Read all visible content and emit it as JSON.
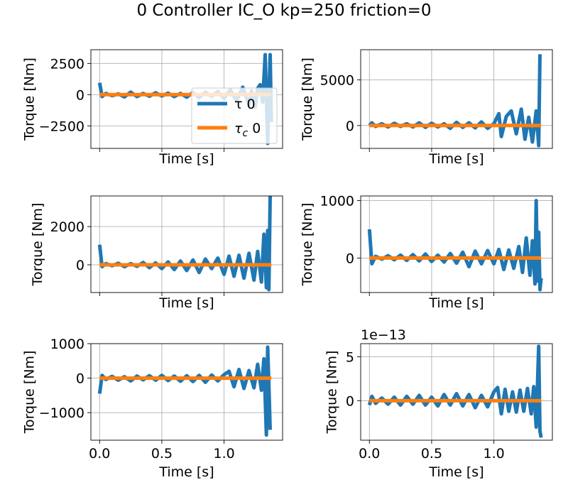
{
  "figure": {
    "title": "0 Controller IC_O kp=250 friction=0"
  },
  "colors": {
    "tau": "#1f77b4",
    "tau_c": "#ff7f0e",
    "grid": "#b0b0b0"
  },
  "legend": {
    "entries": [
      {
        "label": "τ 0",
        "color": "#1f77b4"
      },
      {
        "label": "τc 0",
        "color": "#ff7f0e"
      }
    ],
    "location": "lower-right of top-left subplot"
  },
  "chart_data": [
    {
      "type": "line",
      "xlabel": "Time [s]",
      "ylabel": "Torque [Nm]",
      "xlim": [
        -0.07,
        1.47
      ],
      "ylim": [
        -4300,
        3600
      ],
      "yticks": [
        -2500,
        0,
        2500
      ],
      "ytick_labels": [
        "−2500",
        "0",
        "2500"
      ],
      "xticks": [
        0,
        0.5,
        1.0
      ],
      "xtick_labels": [],
      "grid": true,
      "legend": true,
      "offset_text": "",
      "series": [
        {
          "name": "τ 0",
          "x": [
            0,
            0.02,
            0.05,
            0.1,
            0.15,
            0.2,
            0.25,
            0.3,
            0.35,
            0.4,
            0.45,
            0.5,
            0.55,
            0.6,
            0.65,
            0.7,
            0.75,
            0.8,
            0.85,
            0.9,
            0.95,
            1.0,
            1.05,
            1.1,
            1.15,
            1.2,
            1.22,
            1.25,
            1.27,
            1.29,
            1.31,
            1.33,
            1.35,
            1.37,
            1.38
          ],
          "y": [
            950,
            -150,
            100,
            -80,
            60,
            -180,
            200,
            -150,
            100,
            -120,
            150,
            -100,
            120,
            -150,
            100,
            -200,
            180,
            -250,
            200,
            -150,
            250,
            -300,
            400,
            -500,
            600,
            -800,
            300,
            -1000,
            500,
            800,
            -600,
            3200,
            -3900,
            3200,
            -2200
          ]
        },
        {
          "name": "τc 0",
          "x": [
            0,
            1.38
          ],
          "y": [
            0,
            0
          ]
        }
      ]
    },
    {
      "type": "line",
      "xlabel": "Time [s]",
      "ylabel": "Torque [Nm]",
      "xlim": [
        -0.07,
        1.47
      ],
      "ylim": [
        -2500,
        8300
      ],
      "yticks": [
        0,
        5000
      ],
      "ytick_labels": [
        "0",
        "5000"
      ],
      "xticks": [
        0,
        0.5,
        1.0
      ],
      "xtick_labels": [],
      "grid": true,
      "legend": false,
      "offset_text": "",
      "series": [
        {
          "name": "τ 0",
          "x": [
            0,
            0.02,
            0.05,
            0.1,
            0.15,
            0.2,
            0.25,
            0.3,
            0.35,
            0.4,
            0.45,
            0.5,
            0.55,
            0.6,
            0.65,
            0.7,
            0.75,
            0.8,
            0.85,
            0.9,
            0.95,
            1.0,
            1.04,
            1.06,
            1.1,
            1.14,
            1.18,
            1.22,
            1.25,
            1.28,
            1.31,
            1.34,
            1.36,
            1.37
          ],
          "y": [
            0,
            300,
            -100,
            200,
            -150,
            250,
            -100,
            200,
            -150,
            300,
            -200,
            250,
            -150,
            200,
            -300,
            350,
            -200,
            300,
            -250,
            400,
            -300,
            200,
            1300,
            -1200,
            1000,
            1600,
            -900,
            1800,
            -1500,
            900,
            -1800,
            1600,
            -2200,
            7800
          ]
        },
        {
          "name": "τc 0",
          "x": [
            0,
            1.38
          ],
          "y": [
            0,
            0
          ]
        }
      ]
    },
    {
      "type": "line",
      "xlabel": "Time [s]",
      "ylabel": "Torque [Nm]",
      "xlim": [
        -0.07,
        1.47
      ],
      "ylim": [
        -1450,
        3600
      ],
      "yticks": [
        0,
        2000
      ],
      "ytick_labels": [
        "0",
        "2000"
      ],
      "xticks": [
        0,
        0.5,
        1.0
      ],
      "xtick_labels": [],
      "grid": true,
      "legend": false,
      "offset_text": "",
      "series": [
        {
          "name": "τ 0",
          "x": [
            0,
            0.02,
            0.05,
            0.1,
            0.15,
            0.2,
            0.25,
            0.3,
            0.35,
            0.4,
            0.45,
            0.5,
            0.55,
            0.6,
            0.65,
            0.7,
            0.75,
            0.8,
            0.85,
            0.9,
            0.95,
            1.0,
            1.04,
            1.08,
            1.12,
            1.16,
            1.2,
            1.24,
            1.27,
            1.3,
            1.32,
            1.34,
            1.35,
            1.36,
            1.37
          ],
          "y": [
            1050,
            -100,
            60,
            -50,
            80,
            -100,
            60,
            -80,
            120,
            -150,
            100,
            -200,
            150,
            -250,
            200,
            -300,
            250,
            -400,
            300,
            -200,
            350,
            -500,
            450,
            -600,
            500,
            -700,
            600,
            -800,
            700,
            -900,
            1600,
            -1200,
            1800,
            -1300,
            3600
          ]
        },
        {
          "name": "τc 0",
          "x": [
            0,
            1.38
          ],
          "y": [
            0,
            0
          ]
        }
      ]
    },
    {
      "type": "line",
      "xlabel": "Time [s]",
      "ylabel": "Torque [Nm]",
      "xlim": [
        -0.07,
        1.47
      ],
      "ylim": [
        -600,
        1080
      ],
      "yticks": [
        0,
        1000
      ],
      "ytick_labels": [
        "0",
        "1000"
      ],
      "xticks": [
        0,
        0.5,
        1.0
      ],
      "xtick_labels": [],
      "grid": true,
      "legend": false,
      "offset_text": "",
      "series": [
        {
          "name": "τ 0",
          "x": [
            0,
            0.02,
            0.05,
            0.1,
            0.15,
            0.2,
            0.25,
            0.3,
            0.35,
            0.4,
            0.45,
            0.5,
            0.55,
            0.6,
            0.65,
            0.7,
            0.75,
            0.8,
            0.85,
            0.9,
            0.95,
            1.0,
            1.04,
            1.08,
            1.12,
            1.16,
            1.2,
            1.23,
            1.26,
            1.29,
            1.31,
            1.33,
            1.34,
            1.35,
            1.36,
            1.37,
            1.38
          ],
          "y": [
            500,
            -100,
            30,
            -20,
            40,
            -30,
            50,
            -40,
            60,
            -50,
            70,
            -60,
            50,
            -70,
            80,
            -90,
            100,
            -150,
            120,
            -100,
            130,
            -100,
            150,
            -200,
            140,
            -180,
            200,
            -250,
            350,
            -300,
            300,
            -450,
            1000,
            -400,
            450,
            -550,
            -350
          ]
        },
        {
          "name": "τc 0",
          "x": [
            0,
            1.38
          ],
          "y": [
            0,
            0
          ]
        }
      ]
    },
    {
      "type": "line",
      "xlabel": "Time [s]",
      "ylabel": "Torque [Nm]",
      "xlim": [
        -0.07,
        1.47
      ],
      "ylim": [
        -1800,
        1000
      ],
      "yticks": [
        -1000,
        0,
        1000
      ],
      "ytick_labels": [
        "−1000",
        "0",
        "1000"
      ],
      "xticks": [
        0,
        0.5,
        1.0
      ],
      "xtick_labels": [
        "0.0",
        "0.5",
        "1.0"
      ],
      "grid": true,
      "legend": false,
      "offset_text": "",
      "series": [
        {
          "name": "τ 0",
          "x": [
            0,
            0.02,
            0.05,
            0.1,
            0.15,
            0.2,
            0.25,
            0.3,
            0.35,
            0.4,
            0.45,
            0.5,
            0.55,
            0.6,
            0.65,
            0.7,
            0.75,
            0.8,
            0.85,
            0.9,
            0.95,
            1.0,
            1.04,
            1.08,
            1.12,
            1.16,
            1.2,
            1.24,
            1.27,
            1.3,
            1.32,
            1.34,
            1.35,
            1.36,
            1.37
          ],
          "y": [
            -450,
            80,
            -40,
            50,
            -60,
            40,
            -80,
            60,
            -50,
            70,
            -60,
            80,
            -70,
            60,
            -90,
            70,
            -100,
            80,
            -120,
            90,
            -80,
            100,
            200,
            -250,
            250,
            -300,
            220,
            -280,
            400,
            -350,
            560,
            -1650,
            900,
            -200,
            -1500
          ]
        },
        {
          "name": "τc 0",
          "x": [
            0,
            1.38
          ],
          "y": [
            0,
            0
          ]
        }
      ]
    },
    {
      "type": "line",
      "xlabel": "Time [s]",
      "ylabel": "Torque [Nm]",
      "xlim": [
        -0.07,
        1.47
      ],
      "ylim": [
        -4.5,
        6.5
      ],
      "yticks": [
        0,
        5
      ],
      "ytick_labels": [
        "0",
        "5"
      ],
      "xticks": [
        0,
        0.5,
        1.0
      ],
      "xtick_labels": [
        "0.0",
        "0.5",
        "1.0"
      ],
      "grid": true,
      "legend": false,
      "offset_text": "1e−13",
      "series": [
        {
          "name": "τ 0",
          "x": [
            0,
            0.02,
            0.05,
            0.1,
            0.15,
            0.2,
            0.25,
            0.3,
            0.35,
            0.4,
            0.45,
            0.5,
            0.55,
            0.6,
            0.65,
            0.7,
            0.75,
            0.8,
            0.85,
            0.9,
            0.95,
            1.0,
            1.03,
            1.06,
            1.09,
            1.12,
            1.15,
            1.18,
            1.21,
            1.24,
            1.27,
            1.3,
            1.32,
            1.34,
            1.36,
            1.37,
            1.38
          ],
          "y": [
            -0.5,
            0.5,
            -0.3,
            0.3,
            -0.4,
            0.4,
            -0.5,
            0.5,
            -0.4,
            0.6,
            -0.5,
            0.4,
            -0.6,
            0.7,
            -0.5,
            0.8,
            -0.6,
            0.7,
            -0.8,
            0.6,
            -0.7,
            1.0,
            1.5,
            -1.5,
            1.3,
            -1.2,
            1.0,
            -1.3,
            1.2,
            -1.2,
            1.4,
            -1.5,
            1.6,
            -3.0,
            6.2,
            -3.5,
            -4.2
          ]
        },
        {
          "name": "τc 0",
          "x": [
            0,
            1.38
          ],
          "y": [
            0,
            0
          ]
        }
      ]
    }
  ]
}
